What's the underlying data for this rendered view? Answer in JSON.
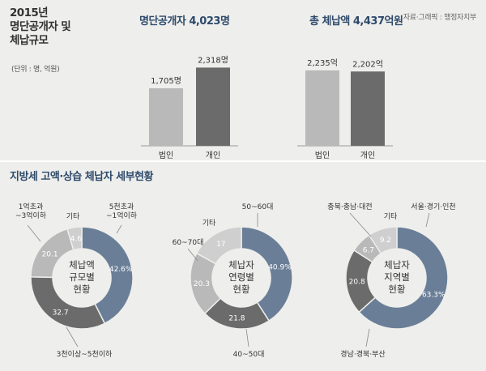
{
  "header": {
    "title_lines": [
      "2015년",
      "명단공개자 및",
      "체납규모"
    ],
    "unit": "(단위 : 명, 억원)",
    "source": "자료·그래픽 : 행정자치부"
  },
  "colors": {
    "background": "#eeeeec",
    "dark_gray": "#6b6b6b",
    "light_gray": "#b9b9b9",
    "lighter_gray": "#cfcfcf",
    "blue_gray": "#6a7f97",
    "title_blue": "#2e4a6b"
  },
  "section_title": "지방세 고액·상습 체납자 세부현황",
  "chart_data": [
    {
      "type": "bar",
      "title": "명단공개자 4,023명",
      "categories": [
        "법인",
        "개인"
      ],
      "values": [
        1705,
        2318
      ],
      "value_labels": [
        "1,705명",
        "2,318명"
      ],
      "ylim": [
        0,
        2400
      ],
      "colors": [
        "#b9b9b9",
        "#6b6b6b"
      ]
    },
    {
      "type": "bar",
      "title": "총 체납액 4,437억원",
      "categories": [
        "법인",
        "개인"
      ],
      "values": [
        2235,
        2202
      ],
      "value_labels": [
        "2,235억",
        "2,202억"
      ],
      "ylim": [
        0,
        2400
      ],
      "colors": [
        "#b9b9b9",
        "#6b6b6b"
      ]
    },
    {
      "type": "pie",
      "center_label": [
        "체납액",
        "규모별",
        "현황"
      ],
      "slices": [
        {
          "label": "5천초과~1억이하",
          "value": 42.6,
          "value_label": "42.6%",
          "color": "#6a7f97"
        },
        {
          "label": "3천이상~5천이하",
          "value": 32.7,
          "value_label": "32.7",
          "color": "#6b6b6b"
        },
        {
          "label": "1억초과~3억이하",
          "value": 20.1,
          "value_label": "20.1",
          "color": "#b9b9b9"
        },
        {
          "label": "기타",
          "value": 4.6,
          "value_label": "4.6",
          "color": "#cfcfcf"
        }
      ]
    },
    {
      "type": "pie",
      "center_label": [
        "체납자",
        "연령별",
        "현황"
      ],
      "slices": [
        {
          "label": "50~60대",
          "value": 40.9,
          "value_label": "40.9%",
          "color": "#6a7f97"
        },
        {
          "label": "40~50대",
          "value": 21.8,
          "value_label": "21.8",
          "color": "#6b6b6b"
        },
        {
          "label": "60~70대",
          "value": 20.3,
          "value_label": "20.3",
          "color": "#b9b9b9"
        },
        {
          "label": "기타",
          "value": 17,
          "value_label": "17",
          "color": "#cfcfcf"
        }
      ]
    },
    {
      "type": "pie",
      "center_label": [
        "체납자",
        "지역별",
        "현황"
      ],
      "slices": [
        {
          "label": "서울·경기·인천",
          "value": 63.3,
          "value_label": "63.3%",
          "color": "#6a7f97"
        },
        {
          "label": "경남·경북·부산",
          "value": 20.8,
          "value_label": "20.8",
          "color": "#6b6b6b"
        },
        {
          "label": "충북·충남·대전",
          "value": 6.7,
          "value_label": "6.7",
          "color": "#b9b9b9"
        },
        {
          "label": "기타",
          "value": 9.2,
          "value_label": "9.2",
          "color": "#cfcfcf"
        }
      ]
    }
  ]
}
